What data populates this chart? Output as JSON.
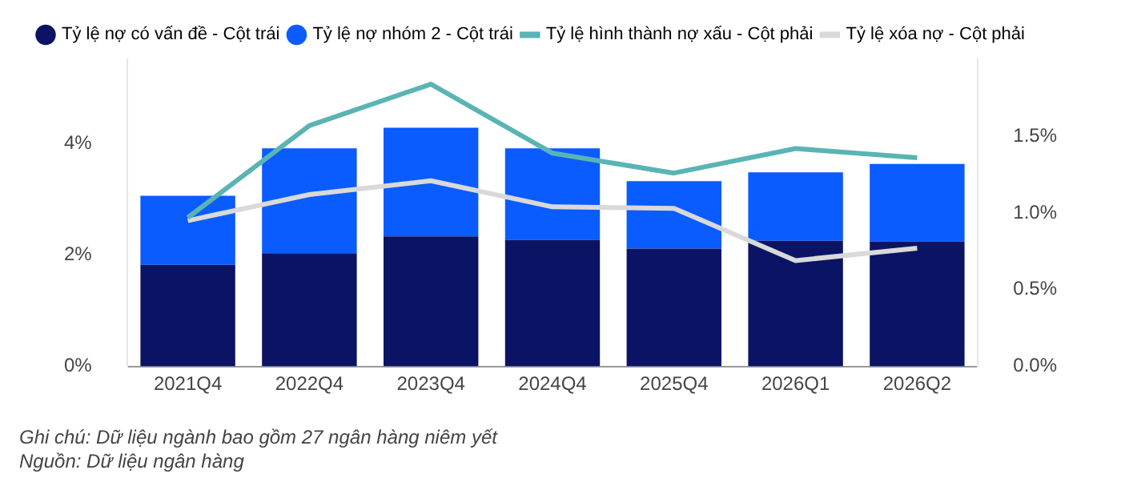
{
  "chart_data": {
    "type": "bar",
    "stacked": true,
    "categories": [
      "2021Q4",
      "2022Q4",
      "2023Q4",
      "2024Q4",
      "2025Q4",
      "2026Q1",
      "2026Q2"
    ],
    "series": [
      {
        "name": "Tỷ lệ nợ có vấn đề - Cột trái",
        "color": "#0b1464",
        "values": [
          1.82,
          2.03,
          2.33,
          2.27,
          2.11,
          2.25,
          2.24
        ]
      },
      {
        "name": "Tỷ lệ nợ nhóm 2 - Cột trái",
        "color": "#0a5cff",
        "values": [
          1.24,
          1.88,
          1.95,
          1.64,
          1.21,
          1.23,
          1.39
        ]
      },
      {
        "name": "Tỷ lệ hình thành nợ xấu - Cột phải",
        "type": "line",
        "axis": "y2",
        "color": "#5ab4b4",
        "values": [
          0.97,
          1.57,
          1.84,
          1.39,
          1.26,
          1.42,
          1.36
        ]
      },
      {
        "name": "Tỷ lệ xóa nợ - Cột phải",
        "type": "line",
        "axis": "y2",
        "color": "#d9d9d9",
        "values": [
          0.95,
          1.12,
          1.21,
          1.04,
          1.03,
          0.69,
          0.77
        ]
      }
    ],
    "ylim": [
      0,
      5.5
    ],
    "yticks": [
      {
        "value": 0,
        "label": "0%"
      },
      {
        "value": 2,
        "label": "2%"
      },
      {
        "value": 4,
        "label": "4%"
      }
    ],
    "y2lim": [
      0,
      2
    ],
    "y2ticks": [
      {
        "value": 0,
        "label": "0.0%"
      },
      {
        "value": 0.5,
        "label": "0.5%"
      },
      {
        "value": 1,
        "label": "1.0%"
      },
      {
        "value": 1.5,
        "label": "1.5%"
      }
    ],
    "grid": false,
    "legend": "top",
    "marker": "none",
    "line_style": "solid",
    "annotations": [
      "Ghi chú: Dữ liệu ngành bao gồm 27 ngân hàng niêm yết",
      "Nguồn: Dữ liệu ngân hàng"
    ]
  }
}
